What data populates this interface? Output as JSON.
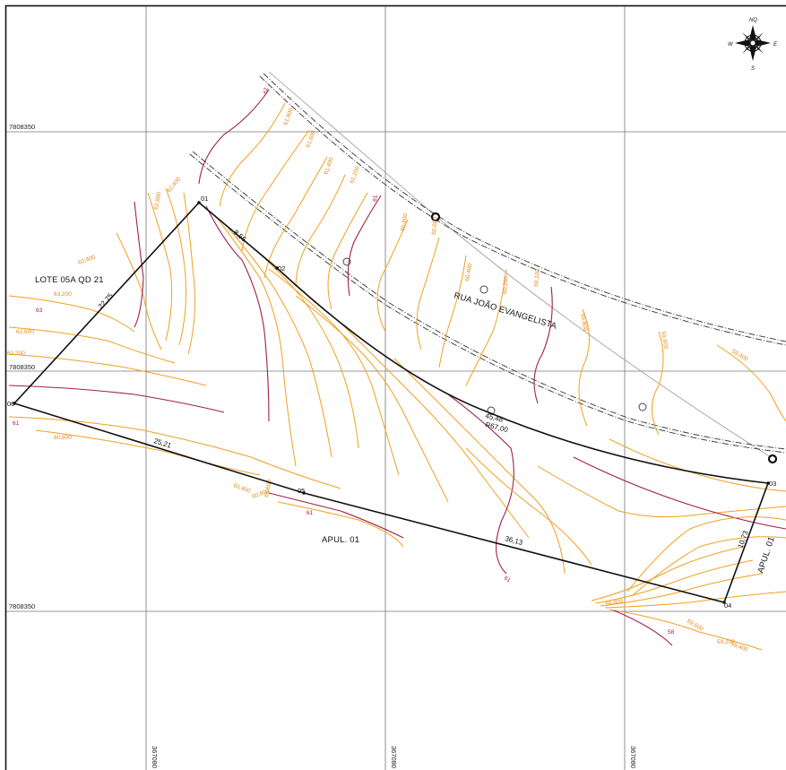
{
  "grid": {
    "northing_labels": [
      "7808350",
      "7808350",
      "7808350"
    ],
    "easting_labels": [
      "367080",
      "367080",
      "367080"
    ]
  },
  "compass": {
    "north": "NQ",
    "east": "E",
    "south": "S",
    "west": "W"
  },
  "lot": {
    "vertices": [
      "01",
      "02",
      "03",
      "04",
      "05",
      "06"
    ],
    "dimensions": [
      "8,56",
      "45,48",
      "R67,00",
      "10,73",
      "36,13",
      "25,21",
      "22,75"
    ]
  },
  "labels": {
    "neighbor_lot": "LOTE 05A QD 21",
    "street": "RUA JOÃO EVANGELISTA",
    "apul_bottom": "APUL. 01",
    "apul_right": "APUL. 01"
  },
  "contour_labels": {
    "orange": [
      "63,400",
      "63,200",
      "62,600",
      "62,200",
      "62,800",
      "62,400",
      "61,800",
      "61,600",
      "61,400",
      "61,200",
      "60,800",
      "60,600",
      "60,400",
      "60,200",
      "60,100",
      "59,800",
      "59,600",
      "59,400",
      "59,200",
      "60,800",
      "60,600",
      "60,400",
      "59,800",
      "59,600",
      "59,400",
      "60,800"
    ],
    "magenta": [
      "62",
      "63",
      "61",
      "61",
      "61",
      "61",
      "58"
    ]
  },
  "colors": {
    "contour_minor": "#f0a020",
    "contour_major": "#a0204a",
    "lot_line": "#111111",
    "grid": "#777777"
  }
}
